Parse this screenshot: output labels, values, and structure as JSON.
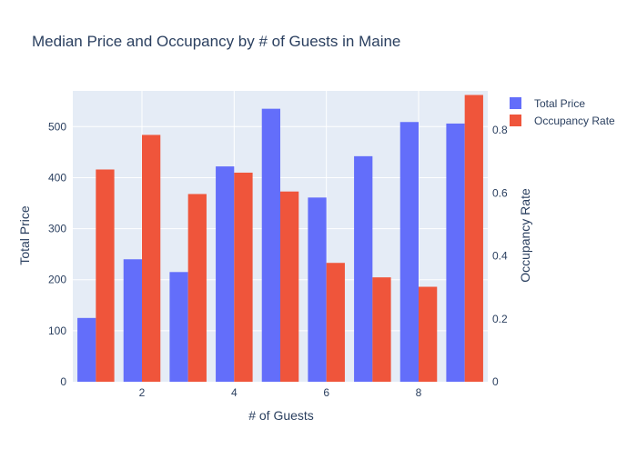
{
  "chart_data": {
    "type": "bar",
    "title": "Median Price and Occupancy by # of Guests in Maine",
    "xlabel": "# of Guests",
    "ylabel": "Total Price",
    "y2label": "Occupancy Rate",
    "x": [
      1,
      2,
      3,
      4,
      5,
      6,
      7,
      8,
      9
    ],
    "x_ticks": [
      2,
      4,
      6,
      8
    ],
    "ylim": [
      0,
      570
    ],
    "y_ticks": [
      0,
      100,
      200,
      300,
      400,
      500
    ],
    "y2lim": [
      0,
      0.925
    ],
    "y2_ticks": [
      0,
      0.2,
      0.4,
      0.6,
      0.8
    ],
    "legend_position": "top-right",
    "grid": true,
    "series": [
      {
        "name": "Total Price",
        "axis": "y",
        "color": "#636efa",
        "values": [
          125,
          240,
          215,
          422,
          535,
          361,
          442,
          509,
          506
        ]
      },
      {
        "name": "Occupancy Rate",
        "axis": "y2",
        "color": "#ef553b",
        "values": [
          0.675,
          0.785,
          0.597,
          0.665,
          0.605,
          0.378,
          0.332,
          0.302,
          0.912
        ]
      }
    ]
  },
  "colors": {
    "plot_background": "#e5ecf6",
    "gridline": "#ffffff",
    "text": "#2a3f5f"
  }
}
